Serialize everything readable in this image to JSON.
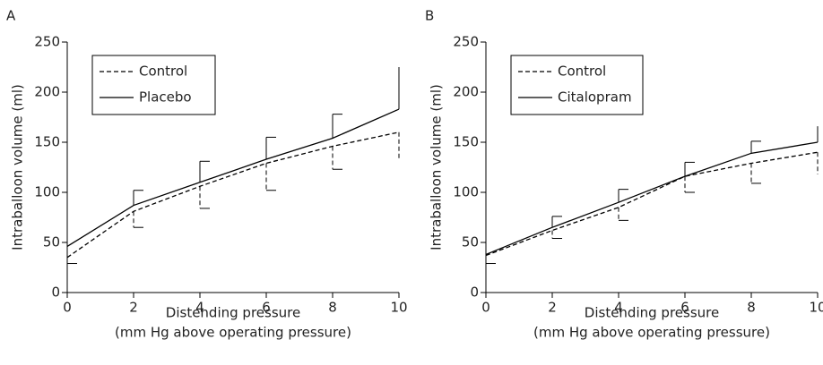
{
  "chart_data": [
    {
      "type": "line",
      "panel_label": "A",
      "x": [
        0,
        2,
        4,
        6,
        8,
        10
      ],
      "xlim": [
        0,
        10
      ],
      "xticks": [
        0,
        2,
        4,
        6,
        8,
        10
      ],
      "ylim": [
        0,
        250
      ],
      "yticks": [
        0,
        50,
        100,
        150,
        200,
        250
      ],
      "xlabel": [
        "Distending pressure",
        "(mm Hg above operating pressure)"
      ],
      "ylabel": "Intraballoon volume (ml)",
      "legend": "upper left",
      "series": [
        {
          "name": "Control",
          "color": "#000000",
          "line_style": "dashed",
          "error_direction": "down",
          "values": [
            35,
            81,
            106,
            129,
            146,
            160
          ],
          "errors": [
            6,
            16,
            22,
            27,
            23,
            28
          ]
        },
        {
          "name": "Placebo",
          "color": "#000000",
          "line_style": "solid",
          "error_direction": "up",
          "values": [
            46,
            87,
            110,
            133,
            154,
            183
          ],
          "errors": [
            null,
            15,
            21,
            22,
            24,
            42
          ]
        }
      ]
    },
    {
      "type": "line",
      "panel_label": "B",
      "x": [
        0,
        2,
        4,
        6,
        8,
        10
      ],
      "xlim": [
        0,
        10
      ],
      "xticks": [
        0,
        2,
        4,
        6,
        8,
        10
      ],
      "ylim": [
        0,
        250
      ],
      "yticks": [
        0,
        50,
        100,
        150,
        200,
        250
      ],
      "xlabel": [
        "Distending pressure",
        "(mm Hg above operating pressure)"
      ],
      "ylabel": "Intraballoon volume (ml)",
      "legend": "upper left",
      "series": [
        {
          "name": "Control",
          "color": "#000000",
          "line_style": "dashed",
          "error_direction": "down",
          "values": [
            37,
            62,
            85,
            116,
            129,
            140
          ],
          "errors": [
            8,
            8,
            13,
            16,
            20,
            22
          ]
        },
        {
          "name": "Citalopram",
          "color": "#000000",
          "line_style": "solid",
          "error_direction": "up",
          "values": [
            38,
            65,
            90,
            116,
            139,
            150
          ],
          "errors": [
            null,
            11,
            13,
            14,
            12,
            16
          ]
        }
      ]
    }
  ]
}
